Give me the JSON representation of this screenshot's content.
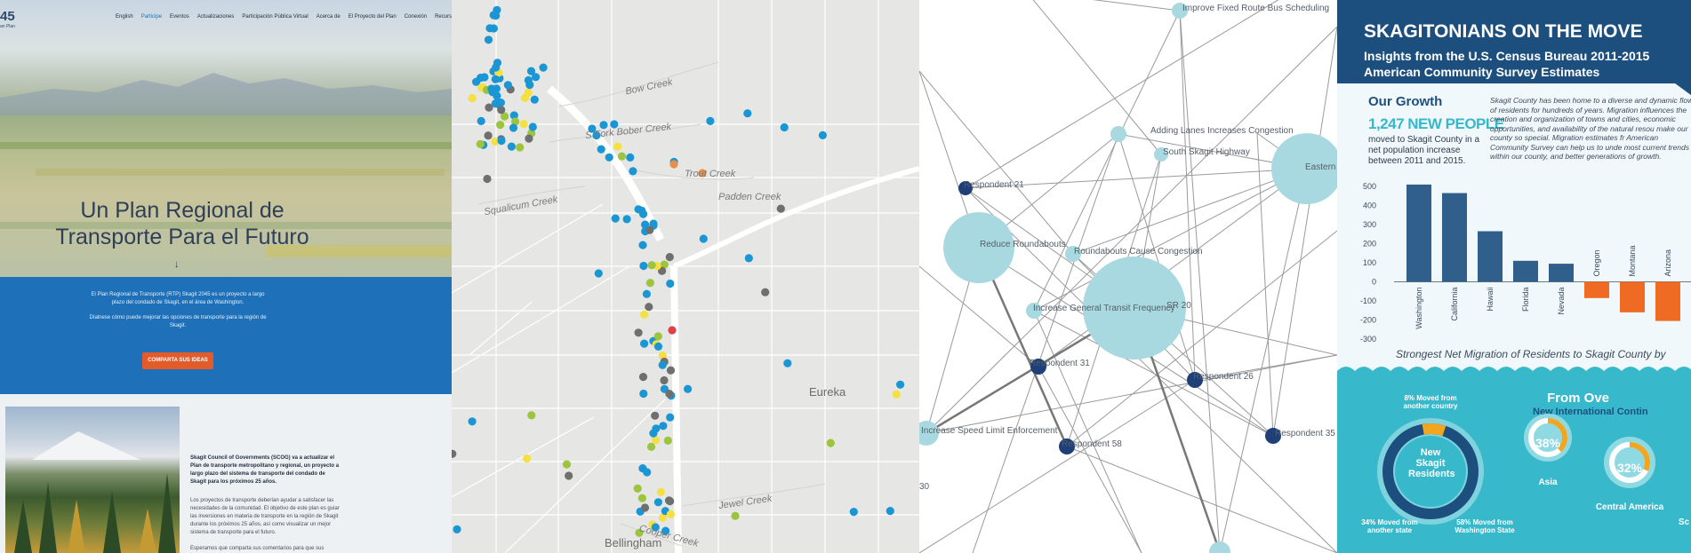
{
  "website": {
    "logo_number": "45",
    "logo_sub": "an Plan",
    "nav": [
      "English",
      "Participe",
      "Eventos",
      "Actualizaciones",
      "Participación Pública Virtual",
      "Acerca de",
      "El Proyecto del Plan",
      "Conexión",
      "Recursos"
    ],
    "nav_active_index": 1,
    "hero_title": "Un Plan Regional de Transporte Para el Futuro",
    "scroll_arrow": "↓",
    "intro_1": "El Plan Regional de Transporte (RTP) Skagit 2045 es un proyecto a largo plazo del condado de Skagit, en el área de Washington.",
    "intro_2": "Díalnese cómo puede mejorar las opciones de transporte para la región de Skagit.",
    "cta_label": "COMPARTA SUS IDEAS",
    "body_bold": "Skagit Council of Governments (SCOG) va a actualizar el Plan de transporte metropolitano y regional, un proyecto a largo plazo del sistema de transporte del condado de Skagit para los próximos 25 años.",
    "body_1": "Los proyectos de transporte deberían ayudar a satisfacer las necesidades de la comunidad. El objetivo de este plan es guiar las inversiones en materia de transporte en la región de Skagit durante los próximos 25 años, así como visualizar un mejor sistema de transporte para el futuro.",
    "body_2": "Esperamos que comparta sus comentarios para que sus"
  },
  "map": {
    "streets": [
      "Bow Creek",
      "S Fork Bober Creek",
      "Trout Creek",
      "Squalicum Creek",
      "Padden Creek",
      "Jewel Creek",
      "Cooper Creek"
    ],
    "cities": [
      "Eureka",
      "Bellingham"
    ],
    "colors": {
      "blue": "#1a96d4",
      "yellow": "#f5e043",
      "green": "#9cc43e",
      "gray": "#6f6f6f",
      "orange": "#e8904a",
      "red": "#e0404a"
    }
  },
  "network": {
    "labels": [
      "Improve Fixed Route Bus Scheduling",
      "Adding Lanes Increases Congestion",
      "South Skagit Highway",
      "Respondent 21",
      "Reduce Roundabouts",
      "Roundabouts Cause Congestion",
      "Increase General Transit Frequency",
      "SR 20",
      "Respondent 31",
      "Respondent 26",
      "Increase Speed Limit Enforcement",
      "Respondent 58",
      "Respondent 35",
      "30",
      "Eastern"
    ]
  },
  "infographic": {
    "title": "SKAGITONIANS ON THE MOVE",
    "subtitle": "Insights from the U.S. Census Bureau 2011-2015 American Community Survey Estimates",
    "growth_heading": "Our Growth",
    "new_people": "1,247 NEW PEOPLE",
    "moved_text": "moved to Skagit County in a net population increase between 2011 and 2015.",
    "paragraph": "Skagit County has been home to a diverse and dynamic flow of residents for hundreds of years. Migration influences the creation and organization of towns and cities, economic opportunities, and availability of the natural resou make our county so special. Migration estimates fr American Community Survey can help us to unde most current trends within our county, and better generations of growth.",
    "chart_caption": "Strongest Net Migration of Residents to Skagit County by",
    "ring_center": "New Skagit Residents",
    "ring_labels": [
      "8% Moved from another country",
      "34% Moved from another state",
      "58% Moved from Washington State"
    ],
    "from_heading": "From Ove",
    "from_sub": "New International Contin",
    "small_rings": [
      {
        "pct": "38%",
        "label": "Asia"
      },
      {
        "pct": "32%",
        "label": "Central America"
      }
    ],
    "edge_letters": "Sc",
    "colors": {
      "navy": "#1d4f7e",
      "teal": "#38b9cb",
      "bar_pos": "#2f5f8a",
      "bar_neg": "#ef6a22",
      "accent": "#f2a51f"
    }
  },
  "chart_data": {
    "type": "bar",
    "categories": [
      "Washington",
      "California",
      "Hawaii",
      "Florida",
      "Nevada",
      "Oregon",
      "Montana",
      "Arizona"
    ],
    "values": [
      510,
      465,
      265,
      110,
      95,
      -85,
      -160,
      -205
    ],
    "title": "",
    "xlabel": "",
    "ylabel": "",
    "ylim": [
      -300,
      500
    ],
    "yticks": [
      500,
      400,
      300,
      200,
      100,
      0,
      -100,
      -200,
      -300
    ],
    "grid": false
  }
}
